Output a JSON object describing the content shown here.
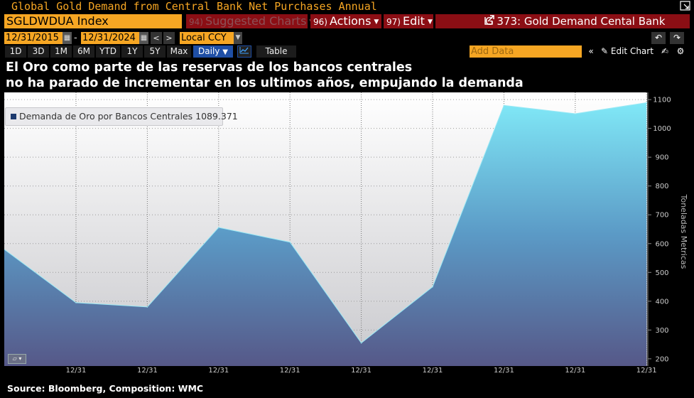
{
  "window": {
    "title": "Global Gold Demand from Central Bank Net Purchases Annual",
    "expand_icon": "expand-icon"
  },
  "toolbar": {
    "ticker": "SGLDWDUA Index",
    "suggested": {
      "num": "94)",
      "label": "Suggested Charts"
    },
    "actions": {
      "num": "96)",
      "label": "Actions"
    },
    "edit": {
      "num": "97)",
      "label": "Edit"
    },
    "chart_id": "G 373: Gold Demand Cental Bank",
    "start_date": "12/31/2015",
    "end_date": "12/31/2024",
    "date_sep": "-",
    "currency": "Local CCY",
    "periods": [
      "1D",
      "3D",
      "1M",
      "6M",
      "YTD",
      "1Y",
      "5Y",
      "Max"
    ],
    "frequency": "Daily",
    "table_label": "Table",
    "add_data_placeholder": "Add Data",
    "edit_chart_label": "Edit Chart"
  },
  "heading": {
    "line1": "El Oro como parte de las reservas de los bancos centrales",
    "line2": "no ha parado de incrementar en los ultimos años, empujando la demanda"
  },
  "legend": {
    "label": "Demanda de Oro por Bancos Centrales 1089.371"
  },
  "source": "Source: Bloomberg, Composition: WMC",
  "colors": {
    "accent": "#f6a623",
    "menu": "#8b0e14",
    "area_top": "#7fe6f5",
    "area_bottom": "#5a5a8c"
  },
  "chart_data": {
    "type": "area",
    "x": [
      "12/31",
      "12/31",
      "12/31",
      "12/31",
      "12/31",
      "12/31",
      "12/31",
      "12/31",
      "12/31"
    ],
    "series": [
      {
        "name": "Demanda de Oro por Bancos Centrales",
        "values": [
          395,
          380,
          656,
          605,
          255,
          450,
          1080,
          1051,
          1089.371
        ]
      }
    ],
    "y_start_value": 580,
    "ylabel": "Toneladas Metricas",
    "ylim": [
      175,
      1125
    ],
    "yticks": [
      200,
      300,
      400,
      500,
      600,
      700,
      800,
      900,
      1000,
      1100
    ],
    "grid": true,
    "legend_position": "top-left"
  }
}
